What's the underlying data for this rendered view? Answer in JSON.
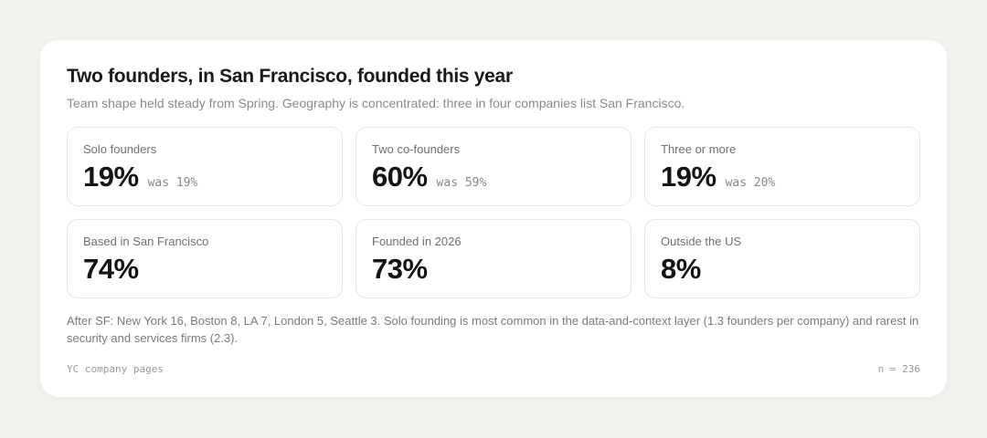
{
  "header": {
    "title": "Two founders, in San Francisco, founded this year",
    "subtitle": "Team shape held steady from Spring. Geography is concentrated: three in four companies list San Francisco."
  },
  "tiles": [
    {
      "label": "Solo founders",
      "value": "19%",
      "was": "was 19%"
    },
    {
      "label": "Two co-founders",
      "value": "60%",
      "was": "was 59%"
    },
    {
      "label": "Three or more",
      "value": "19%",
      "was": "was 20%"
    },
    {
      "label": "Based in San Francisco",
      "value": "74%"
    },
    {
      "label": "Founded in 2026",
      "value": "73%"
    },
    {
      "label": "Outside the US",
      "value": "8%"
    }
  ],
  "note": "After SF: New York 16, Boston 8, LA 7, London 5, Seattle 3. Solo founding is most common in the data-and-context layer (1.3 founders per company) and rarest in security and services firms (2.3).",
  "footer": {
    "source": "YC company pages",
    "n": "n = 236"
  }
}
